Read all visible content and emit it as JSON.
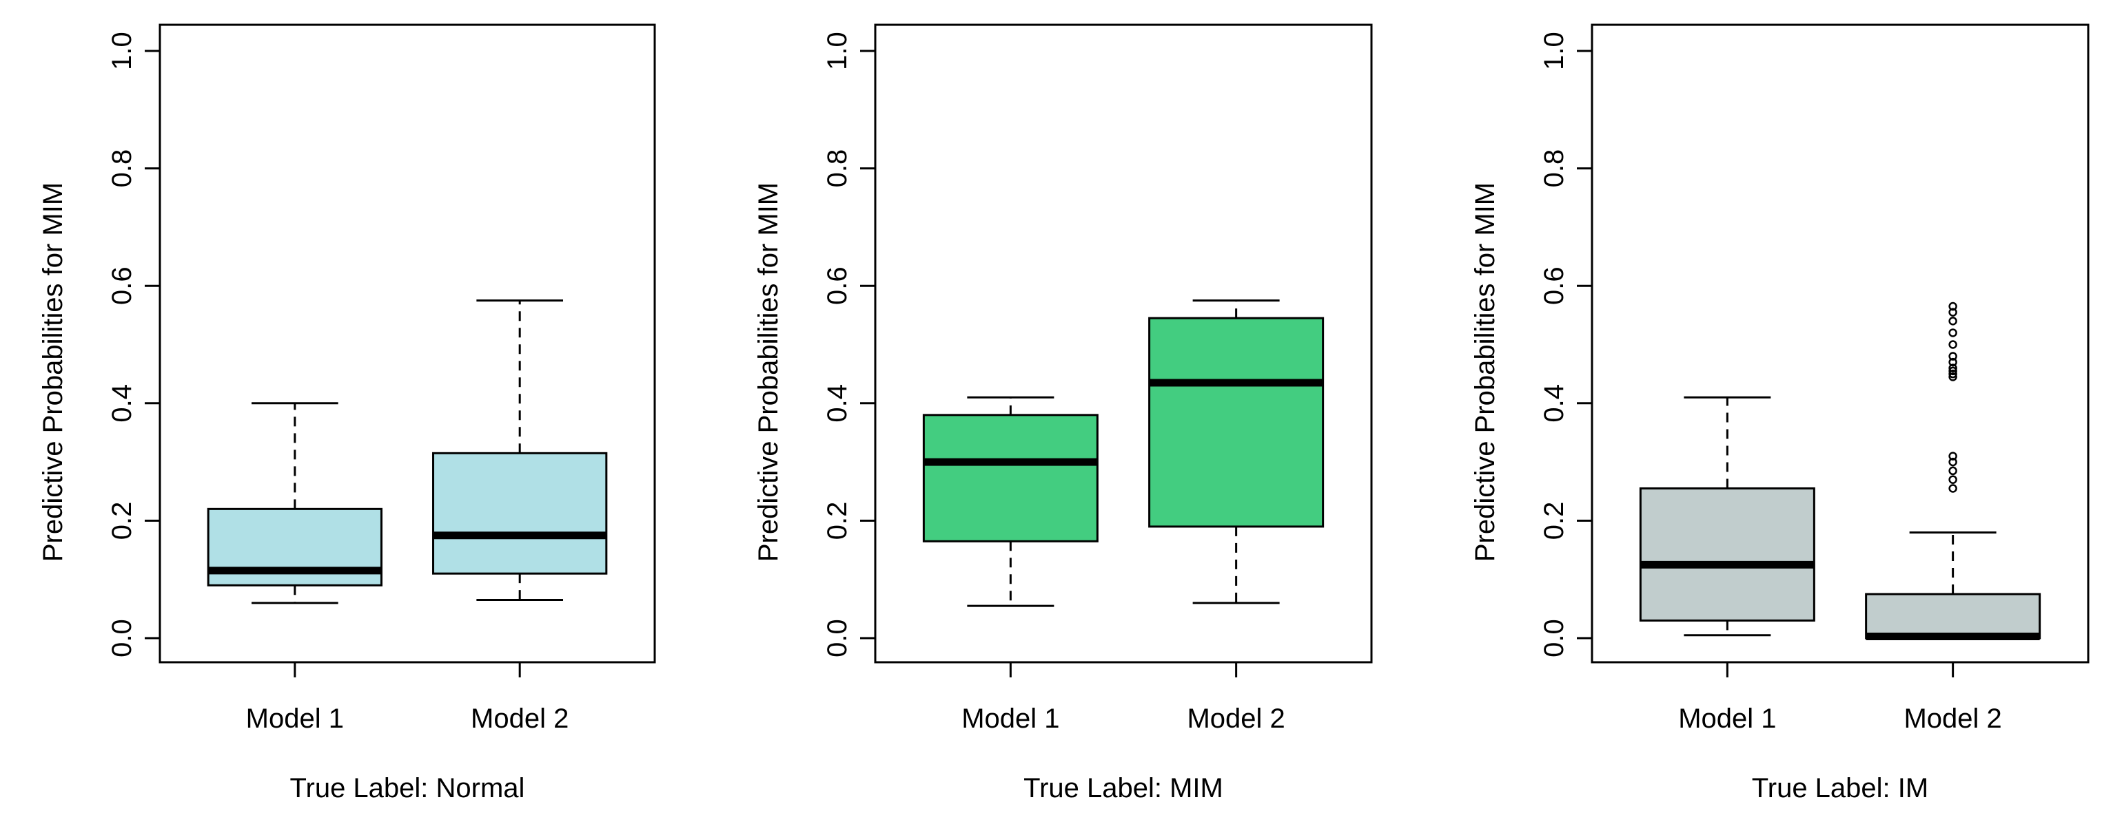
{
  "chart_data": [
    {
      "type": "boxplot",
      "ylabel": "Predictive Probabilities for MIM",
      "xlabel": "True Label: Normal",
      "ylim": [
        0,
        1
      ],
      "yticks": [
        "0.0",
        "0.2",
        "0.4",
        "0.6",
        "0.8",
        "1.0"
      ],
      "categories": [
        "Model 1",
        "Model 2"
      ],
      "fill": "#b0e0e6",
      "boxes": [
        {
          "min": 0.06,
          "q1": 0.09,
          "median": 0.115,
          "q3": 0.22,
          "max": 0.4,
          "outliers": []
        },
        {
          "min": 0.065,
          "q1": 0.11,
          "median": 0.175,
          "q3": 0.315,
          "max": 0.575,
          "outliers": []
        }
      ]
    },
    {
      "type": "boxplot",
      "ylabel": "Predictive Probabilities for MIM",
      "xlabel": "True Label: MIM",
      "ylim": [
        0,
        1
      ],
      "yticks": [
        "0.0",
        "0.2",
        "0.4",
        "0.6",
        "0.8",
        "1.0"
      ],
      "categories": [
        "Model 1",
        "Model 2"
      ],
      "fill": "#43cd80",
      "boxes": [
        {
          "min": 0.055,
          "q1": 0.165,
          "median": 0.3,
          "q3": 0.38,
          "max": 0.41,
          "outliers": []
        },
        {
          "min": 0.06,
          "q1": 0.19,
          "median": 0.435,
          "q3": 0.545,
          "max": 0.575,
          "outliers": []
        }
      ]
    },
    {
      "type": "boxplot",
      "ylabel": "Predictive Probabilities for MIM",
      "xlabel": "True Label: IM",
      "ylim": [
        0,
        1
      ],
      "yticks": [
        "0.0",
        "0.2",
        "0.4",
        "0.6",
        "0.8",
        "1.0"
      ],
      "categories": [
        "Model 1",
        "Model 2"
      ],
      "fill": "#c1cdcd",
      "boxes": [
        {
          "min": 0.005,
          "q1": 0.03,
          "median": 0.125,
          "q3": 0.255,
          "max": 0.41,
          "outliers": []
        },
        {
          "min": 0.0,
          "q1": 0.0,
          "median": 0.003,
          "q3": 0.075,
          "max": 0.18,
          "outliers": [
            0.255,
            0.27,
            0.285,
            0.3,
            0.31,
            0.445,
            0.45,
            0.455,
            0.46,
            0.47,
            0.48,
            0.5,
            0.52,
            0.54,
            0.555,
            0.565
          ]
        }
      ]
    }
  ]
}
